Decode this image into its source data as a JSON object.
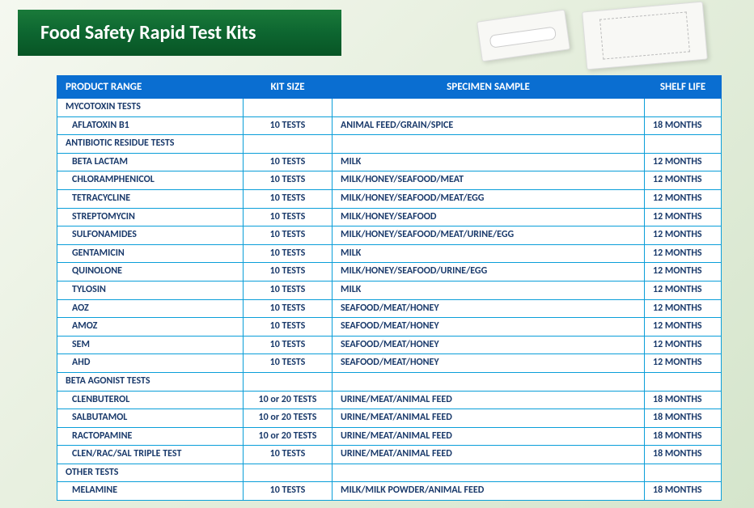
{
  "header": {
    "title": "Food Safety Rapid Test Kits",
    "banner_bg_from": "#1a7a3a",
    "banner_bg_to": "#085525",
    "text_color": "#ffffff"
  },
  "table": {
    "header_bg": "#0a6ed1",
    "border_color": "#0a9ed9",
    "text_color": "#1a3a6b",
    "columns": [
      {
        "key": "range",
        "label": "PRODUCT RANGE",
        "align": "left"
      },
      {
        "key": "kit",
        "label": "KIT SIZE",
        "align": "center"
      },
      {
        "key": "spec",
        "label": "SPECIMEN SAMPLE",
        "align": "center"
      },
      {
        "key": "shelf",
        "label": "SHELF LIFE",
        "align": "center"
      }
    ],
    "sections": [
      {
        "title": "MYCOTOXIN TESTS",
        "rows": [
          {
            "range": "AFLATOXIN B1",
            "kit": "10 TESTS",
            "spec": "ANIMAL FEED/GRAIN/SPICE",
            "shelf": "18 MONTHS"
          }
        ]
      },
      {
        "title": "ANTIBIOTIC RESIDUE TESTS",
        "rows": [
          {
            "range": "BETA LACTAM",
            "kit": "10 TESTS",
            "spec": "MILK",
            "shelf": "12 MONTHS"
          },
          {
            "range": "CHLORAMPHENICOL",
            "kit": "10 TESTS",
            "spec": "MILK/HONEY/SEAFOOD/MEAT",
            "shelf": "12 MONTHS"
          },
          {
            "range": "TETRACYCLINE",
            "kit": "10 TESTS",
            "spec": "MILK/HONEY/SEAFOOD/MEAT/EGG",
            "shelf": "12 MONTHS"
          },
          {
            "range": "STREPTOMYCIN",
            "kit": "10 TESTS",
            "spec": "MILK/HONEY/SEAFOOD",
            "shelf": "12 MONTHS"
          },
          {
            "range": "SULFONAMIDES",
            "kit": "10 TESTS",
            "spec": "MILK/HONEY/SEAFOOD/MEAT/URINE/EGG",
            "shelf": "12 MONTHS"
          },
          {
            "range": "GENTAMICIN",
            "kit": "10 TESTS",
            "spec": "MILK",
            "shelf": "12 MONTHS"
          },
          {
            "range": "QUINOLONE",
            "kit": "10 TESTS",
            "spec": "MILK/HONEY/SEAFOOD/URINE/EGG",
            "shelf": "12 MONTHS"
          },
          {
            "range": "TYLOSIN",
            "kit": "10 TESTS",
            "spec": "MILK",
            "shelf": "12 MONTHS"
          },
          {
            "range": "AOZ",
            "kit": "10 TESTS",
            "spec": "SEAFOOD/MEAT/HONEY",
            "shelf": "12 MONTHS"
          },
          {
            "range": "AMOZ",
            "kit": "10 TESTS",
            "spec": "SEAFOOD/MEAT/HONEY",
            "shelf": "12 MONTHS"
          },
          {
            "range": "SEM",
            "kit": "10 TESTS",
            "spec": "SEAFOOD/MEAT/HONEY",
            "shelf": "12 MONTHS"
          },
          {
            "range": "AHD",
            "kit": "10 TESTS",
            "spec": "SEAFOOD/MEAT/HONEY",
            "shelf": "12 MONTHS"
          }
        ]
      },
      {
        "title": "BETA AGONIST TESTS",
        "rows": [
          {
            "range": "CLENBUTEROL",
            "kit": "10 or 20 TESTS",
            "spec": "URINE/MEAT/ANIMAL FEED",
            "shelf": "18 MONTHS"
          },
          {
            "range": "SALBUTAMOL",
            "kit": "10 or 20  TESTS",
            "spec": "URINE/MEAT/ANIMAL FEED",
            "shelf": "18 MONTHS"
          },
          {
            "range": "RACTOPAMINE",
            "kit": "10 or 20  TESTS",
            "spec": "URINE/MEAT/ANIMAL FEED",
            "shelf": "18 MONTHS"
          },
          {
            "range": "CLEN/RAC/SAL TRIPLE TEST",
            "kit": "10 TESTS",
            "spec": "URINE/MEAT/ANIMAL FEED",
            "shelf": "18 MONTHS"
          }
        ]
      },
      {
        "title": "OTHER TESTS",
        "rows": [
          {
            "range": "MELAMINE",
            "kit": "10 TESTS",
            "spec": "MILK/MILK POWDER/ANIMAL FEED",
            "shelf": "18 MONTHS"
          }
        ]
      }
    ]
  }
}
